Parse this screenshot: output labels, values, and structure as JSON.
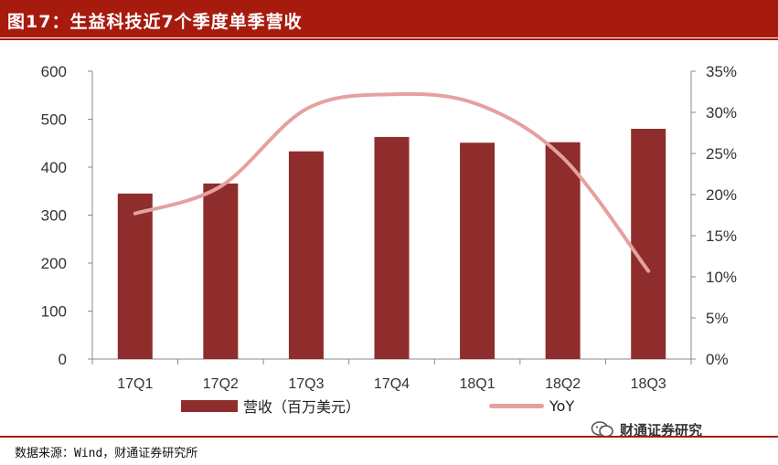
{
  "header": {
    "title": "图17：生益科技近7个季度单季营收"
  },
  "chart_data": {
    "type": "bar",
    "categories": [
      "17Q1",
      "17Q2",
      "17Q3",
      "17Q4",
      "18Q1",
      "18Q2",
      "18Q3"
    ],
    "series": [
      {
        "name": "营收（百万美元）",
        "type": "bar",
        "axis": "left",
        "values": [
          345,
          366,
          433,
          463,
          451,
          452,
          480
        ],
        "color": "#8e2d2b"
      },
      {
        "name": "YoY",
        "type": "line",
        "axis": "right",
        "values": [
          17.7,
          21.0,
          30.4,
          32.2,
          31.0,
          24.5,
          10.7
        ],
        "color": "#e4a1a0"
      }
    ],
    "y_left": {
      "min": 0,
      "max": 600,
      "ticks": [
        "0",
        "100",
        "200",
        "300",
        "400",
        "500",
        "600"
      ]
    },
    "y_right": {
      "min": 0,
      "max": 35,
      "ticks": [
        "0%",
        "5%",
        "10%",
        "15%",
        "20%",
        "25%",
        "30%",
        "35%"
      ]
    },
    "grid": false,
    "legend_position": "bottom"
  },
  "footer": {
    "source": "数据来源：Wind，财通证券研究所",
    "watermark": "财通证券研究"
  }
}
